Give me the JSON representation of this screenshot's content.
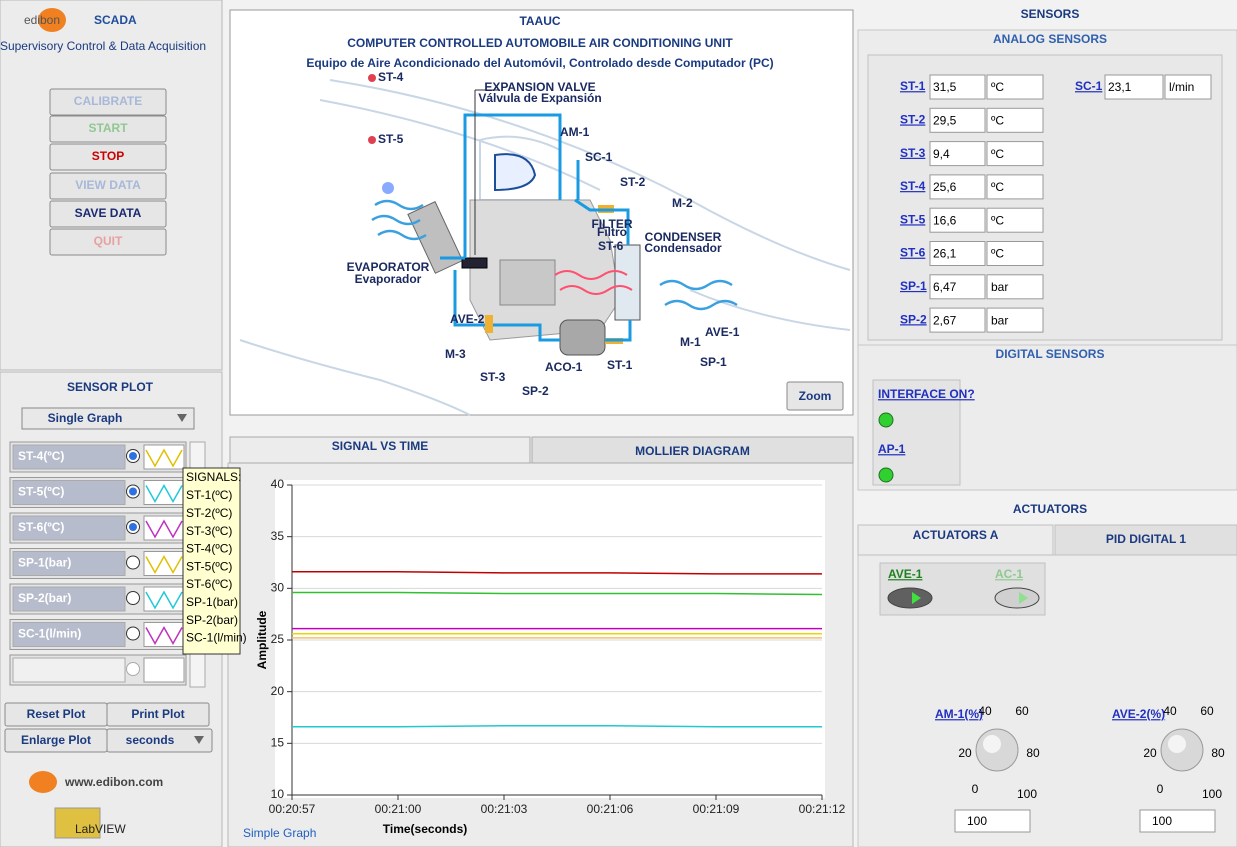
{
  "logo": {
    "brand": "edibon",
    "product": "SCADA",
    "subtitle": "Supervisory Control & Data Acquisition"
  },
  "controls": [
    "CALIBRATE",
    "START",
    "STOP",
    "VIEW DATA",
    "SAVE DATA",
    "QUIT"
  ],
  "sensor_plot": {
    "title": "SENSOR PLOT",
    "mode": "Single Graph",
    "signals": [
      "ST-4(ºC)",
      "ST-5(ºC)",
      "ST-6(ºC)",
      "SP-1(bar)",
      "SP-2(bar)",
      "SC-1(l/min)"
    ],
    "tooltip": {
      "heading": "SIGNALS:",
      "items": [
        "ST-1(ºC)",
        "ST-2(ºC)",
        "ST-3(ºC)",
        "ST-4(ºC)",
        "ST-5(ºC)",
        "ST-6(ºC)",
        "SP-1(bar)",
        "SP-2(bar)",
        "SC-1(l/min)"
      ]
    },
    "buttons": [
      "Reset Plot",
      "Print Plot",
      "Enlarge Plot"
    ],
    "units": "seconds"
  },
  "footer": {
    "website": "www.edibon.com",
    "software": "LabVIEW"
  },
  "diagram": {
    "title": "TAAUC",
    "subtitle": "COMPUTER CONTROLLED AUTOMOBILE AIR CONDITIONING UNIT",
    "subtitle_es": "Equipo de Aire Acondicionado del Automóvil, Controlado desde Computador (PC)",
    "labels": [
      "ST-4",
      "ST-5",
      "EXPANSION VALVE",
      "Válvula de Expansión",
      "AM-1",
      "SC-1",
      "ST-2",
      "M-2",
      "FILTER",
      "Filtro",
      "ST-6",
      "CONDENSER",
      "Condensador",
      "EVAPORATOR",
      "Evaporador",
      "AVE-2",
      "AVE-1",
      "M-3",
      "ST-3",
      "SP-2",
      "ACO-1",
      "ST-1",
      "M-1",
      "SP-1"
    ],
    "zoom": "Zoom"
  },
  "tabs": [
    "SIGNAL VS TIME",
    "MOLLIER DIAGRAM"
  ],
  "chart_data": {
    "type": "line",
    "ylabel": "Amplitude",
    "xlabel": "Time(seconds)",
    "footer": "Simple Graph",
    "categories": [
      "00:20:57",
      "00:21:00",
      "00:21:03",
      "00:21:06",
      "00:21:09",
      "00:21:12"
    ],
    "series": [
      {
        "color": "#c00000",
        "values": [
          31.6,
          31.6,
          31.5,
          31.5,
          31.4,
          31.4
        ]
      },
      {
        "color": "#30c030",
        "values": [
          29.6,
          29.6,
          29.5,
          29.5,
          29.5,
          29.4
        ]
      },
      {
        "color": "#c000c0",
        "values": [
          26.1,
          26.1,
          26.1,
          26.1,
          26.1,
          26.1
        ]
      },
      {
        "color": "#e8d800",
        "values": [
          25.6,
          25.6,
          25.6,
          25.6,
          25.6,
          25.6
        ]
      },
      {
        "color": "#f0c070",
        "values": [
          25.2,
          25.2,
          25.2,
          25.2,
          25.2,
          25.2
        ]
      },
      {
        "color": "#20c8d0",
        "values": [
          16.6,
          16.6,
          16.7,
          16.7,
          16.6,
          16.6
        ]
      }
    ],
    "ylim": [
      10,
      40
    ],
    "yticks": [
      10,
      15,
      20,
      25,
      30,
      35,
      40
    ],
    "grid": true
  },
  "sensors": {
    "title": "SENSORS",
    "analog_title": "ANALOG SENSORS",
    "analog": [
      {
        "label": "ST-1",
        "value": "31,5",
        "unit": "ºC"
      },
      {
        "label": "ST-2",
        "value": "29,5",
        "unit": "ºC"
      },
      {
        "label": "ST-3",
        "value": "9,4",
        "unit": "ºC"
      },
      {
        "label": "ST-4",
        "value": "25,6",
        "unit": "ºC"
      },
      {
        "label": "ST-5",
        "value": "16,6",
        "unit": "ºC"
      },
      {
        "label": "ST-6",
        "value": "26,1",
        "unit": "ºC"
      },
      {
        "label": "SP-1",
        "value": "6,47",
        "unit": "bar"
      },
      {
        "label": "SP-2",
        "value": "2,67",
        "unit": "bar"
      },
      {
        "label": "SC-1",
        "value": "23,1",
        "unit": "l/min"
      }
    ],
    "digital_title": "DIGITAL SENSORS",
    "digital": [
      "INTERFACE ON?",
      "AP-1"
    ]
  },
  "actuators": {
    "title": "ACTUATORS",
    "tabs": [
      "ACTUATORS A",
      "PID DIGITAL 1"
    ],
    "switches": [
      "AVE-1",
      "AC-1"
    ],
    "knobs": [
      {
        "label": "AM-1(%)",
        "scale": [
          0,
          20,
          40,
          60,
          80,
          100
        ],
        "value": "100"
      },
      {
        "label": "AVE-2(%)",
        "scale": [
          0,
          20,
          40,
          60,
          80,
          100
        ],
        "value": "100"
      }
    ]
  }
}
